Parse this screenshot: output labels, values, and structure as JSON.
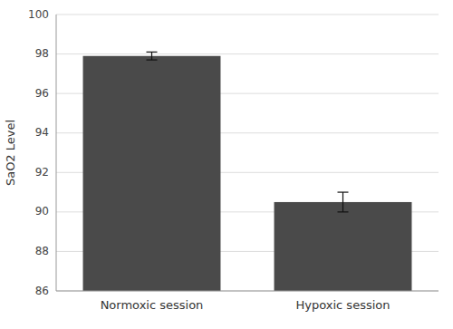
{
  "chart_data": {
    "type": "bar",
    "categories": [
      "Normoxic session",
      "Hypoxic session"
    ],
    "values": [
      97.9,
      90.5
    ],
    "errors": [
      0.2,
      0.5
    ],
    "color": "#4a4a4a",
    "ylabel": "SaO2 Level",
    "ylim": [
      86,
      100
    ],
    "yticks": [
      86,
      88,
      90,
      92,
      94,
      96,
      98,
      100
    ],
    "grid": true
  }
}
